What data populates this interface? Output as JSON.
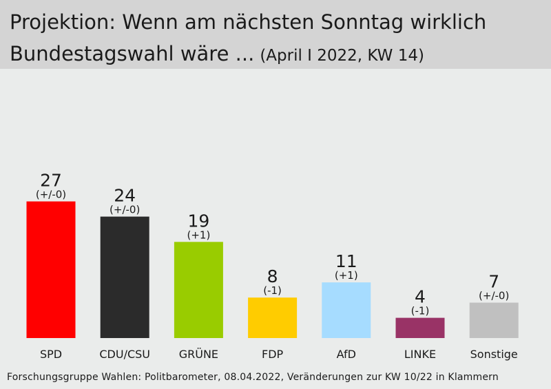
{
  "header": {
    "title_line1": "Projektion: Wenn am nächsten Sonntag wirklich",
    "title_line2": "Bundestagswahl wäre ...",
    "subtitle": "(April I 2022, KW 14)"
  },
  "footer": {
    "source": "Forschungsgruppe Wahlen: Politbarometer, 08.04.2022, Veränderungen zur KW 10/22 in Klammern"
  },
  "chart_data": {
    "type": "bar",
    "title": "Projektion: Wenn am nächsten Sonntag wirklich Bundestagswahl wäre ...",
    "subtitle": "(April I 2022, KW 14)",
    "categories": [
      "SPD",
      "CDU/CSU",
      "GRÜNE",
      "FDP",
      "AfD",
      "LINKE",
      "Sonstige"
    ],
    "values": [
      27,
      24,
      19,
      8,
      11,
      4,
      7
    ],
    "changes": [
      "(+/-0)",
      "(+/-0)",
      "(+1)",
      "(-1)",
      "(+1)",
      "(-1)",
      "(+/-0)"
    ],
    "colors": [
      "#ff0000",
      "#2b2b2b",
      "#99cc00",
      "#ffcc00",
      "#a6dcff",
      "#993366",
      "#c0c0c0"
    ],
    "xlabel": "",
    "ylabel": "",
    "ylim": [
      0,
      30
    ],
    "grid": false
  }
}
